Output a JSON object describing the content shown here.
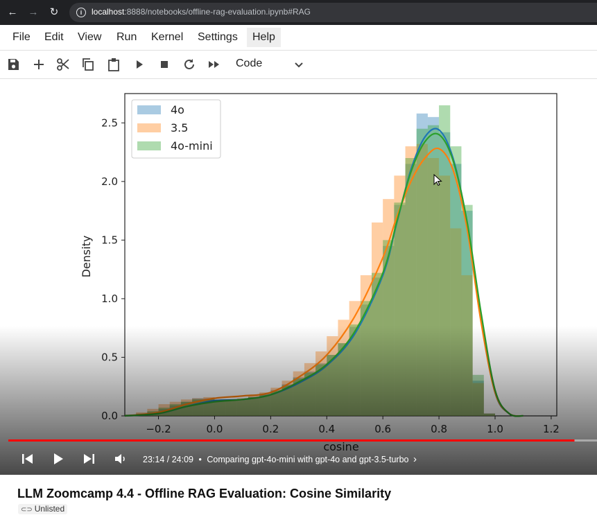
{
  "browser": {
    "url_host": "localhost",
    "url_rest": ":8888/notebooks/offline-rag-evaluation.ipynb#RAG"
  },
  "menu": [
    "File",
    "Edit",
    "View",
    "Run",
    "Kernel",
    "Settings",
    "Help"
  ],
  "toolbar": {
    "cell_type": "Code"
  },
  "chart_data": {
    "type": "histogram with density curves",
    "xlabel": "cosine",
    "ylabel": "Density",
    "xlim": [
      -0.32,
      1.22
    ],
    "ylim": [
      0,
      2.75
    ],
    "xticks": [
      "−0.2",
      "0.0",
      "0.2",
      "0.4",
      "0.6",
      "0.8",
      "1.0",
      "1.2"
    ],
    "yticks": [
      "0.0",
      "0.5",
      "1.0",
      "1.5",
      "2.0",
      "2.5"
    ],
    "legend_position": "top-left",
    "bins": [
      -0.32,
      -0.28,
      -0.24,
      -0.2,
      -0.16,
      -0.12,
      -0.08,
      -0.04,
      0.0,
      0.04,
      0.08,
      0.12,
      0.16,
      0.2,
      0.24,
      0.28,
      0.32,
      0.36,
      0.4,
      0.44,
      0.48,
      0.52,
      0.56,
      0.6,
      0.64,
      0.68,
      0.72,
      0.76,
      0.8,
      0.84,
      0.88,
      0.92,
      0.96,
      1.0
    ],
    "series": [
      {
        "name": "4o",
        "color": "#1f77b4",
        "hist": [
          0.01,
          0.01,
          0.03,
          0.06,
          0.09,
          0.12,
          0.15,
          0.15,
          0.14,
          0.13,
          0.14,
          0.16,
          0.19,
          0.22,
          0.27,
          0.33,
          0.38,
          0.45,
          0.52,
          0.62,
          0.76,
          0.95,
          1.18,
          1.45,
          1.8,
          2.15,
          2.58,
          2.55,
          2.42,
          2.15,
          1.75,
          0.3,
          0.02
        ],
        "kde_x": [
          -0.32,
          -0.2,
          -0.1,
          0.0,
          0.1,
          0.2,
          0.3,
          0.4,
          0.5,
          0.6,
          0.65,
          0.7,
          0.75,
          0.8,
          0.85,
          0.9,
          0.95,
          1.0,
          1.05,
          1.1
        ],
        "kde_y": [
          0.0,
          0.02,
          0.08,
          0.13,
          0.14,
          0.18,
          0.28,
          0.43,
          0.7,
          1.2,
          1.65,
          2.1,
          2.38,
          2.44,
          2.2,
          1.65,
          0.85,
          0.2,
          0.02,
          0.0
        ]
      },
      {
        "name": "3.5",
        "color": "#ff7f0e",
        "hist": [
          0.01,
          0.03,
          0.06,
          0.1,
          0.12,
          0.14,
          0.15,
          0.16,
          0.13,
          0.14,
          0.15,
          0.18,
          0.2,
          0.24,
          0.3,
          0.38,
          0.45,
          0.55,
          0.68,
          0.82,
          0.98,
          1.2,
          1.65,
          1.85,
          2.05,
          2.3,
          2.32,
          2.2,
          2.05,
          1.6,
          1.2,
          0.28,
          0.02
        ],
        "kde_x": [
          -0.32,
          -0.2,
          -0.1,
          0.0,
          0.1,
          0.2,
          0.3,
          0.4,
          0.5,
          0.6,
          0.65,
          0.7,
          0.75,
          0.8,
          0.85,
          0.9,
          0.95,
          1.0,
          1.05,
          1.1
        ],
        "kde_y": [
          0.0,
          0.03,
          0.1,
          0.15,
          0.17,
          0.2,
          0.33,
          0.52,
          0.85,
          1.35,
          1.7,
          2.0,
          2.2,
          2.28,
          2.1,
          1.6,
          0.8,
          0.2,
          0.02,
          0.0
        ]
      },
      {
        "name": "4o-mini",
        "color": "#2ca02c",
        "hist": [
          0.01,
          0.02,
          0.04,
          0.07,
          0.1,
          0.12,
          0.14,
          0.14,
          0.13,
          0.13,
          0.14,
          0.16,
          0.18,
          0.21,
          0.26,
          0.32,
          0.37,
          0.44,
          0.52,
          0.62,
          0.78,
          0.98,
          1.22,
          1.5,
          1.82,
          2.2,
          2.45,
          2.48,
          2.65,
          2.3,
          1.8,
          0.35,
          0.02
        ],
        "kde_x": [
          -0.32,
          -0.2,
          -0.1,
          0.0,
          0.1,
          0.2,
          0.3,
          0.4,
          0.5,
          0.6,
          0.65,
          0.7,
          0.75,
          0.8,
          0.85,
          0.9,
          0.95,
          1.0,
          1.05,
          1.1
        ],
        "kde_y": [
          0.0,
          0.02,
          0.08,
          0.12,
          0.14,
          0.18,
          0.29,
          0.44,
          0.72,
          1.22,
          1.66,
          2.08,
          2.34,
          2.4,
          2.18,
          1.66,
          0.88,
          0.22,
          0.02,
          0.0
        ]
      }
    ]
  },
  "player": {
    "time": "23:14 / 24:09",
    "separator": "•",
    "chapter": "Comparing gpt-4o-mini with gpt-4o and gpt-3.5-turbo",
    "progress": 0.962
  },
  "video_title": "LLM Zoomcamp 4.4 - Offline RAG Evaluation: Cosine Similarity",
  "visibility": "Unlisted"
}
